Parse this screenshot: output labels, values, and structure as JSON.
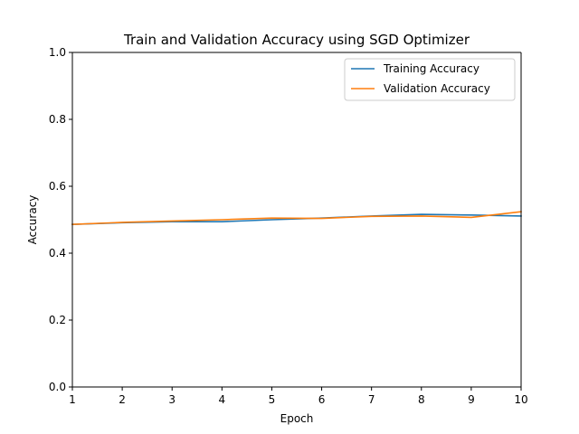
{
  "chart_data": {
    "type": "line",
    "title": "Train and Validation Accuracy using SGD Optimizer",
    "xlabel": "Epoch",
    "ylabel": "Accuracy",
    "xlim": [
      1,
      10
    ],
    "ylim": [
      0.0,
      1.0
    ],
    "xticks": [
      "1",
      "2",
      "3",
      "4",
      "5",
      "6",
      "7",
      "8",
      "9",
      "10"
    ],
    "yticks": [
      "0.0",
      "0.2",
      "0.4",
      "0.6",
      "0.8",
      "1.0"
    ],
    "grid": false,
    "legend": "top-right",
    "x": [
      1,
      2,
      3,
      4,
      5,
      6,
      7,
      8,
      9,
      10
    ],
    "series": [
      {
        "name": "Training Accuracy",
        "color": "#1f77b4",
        "values": [
          0.486,
          0.491,
          0.494,
          0.494,
          0.5,
          0.505,
          0.511,
          0.516,
          0.514,
          0.511
        ]
      },
      {
        "name": "Validation Accuracy",
        "color": "#ff7f0e",
        "values": [
          0.486,
          0.492,
          0.496,
          0.5,
          0.505,
          0.504,
          0.51,
          0.511,
          0.507,
          0.524
        ]
      }
    ]
  }
}
